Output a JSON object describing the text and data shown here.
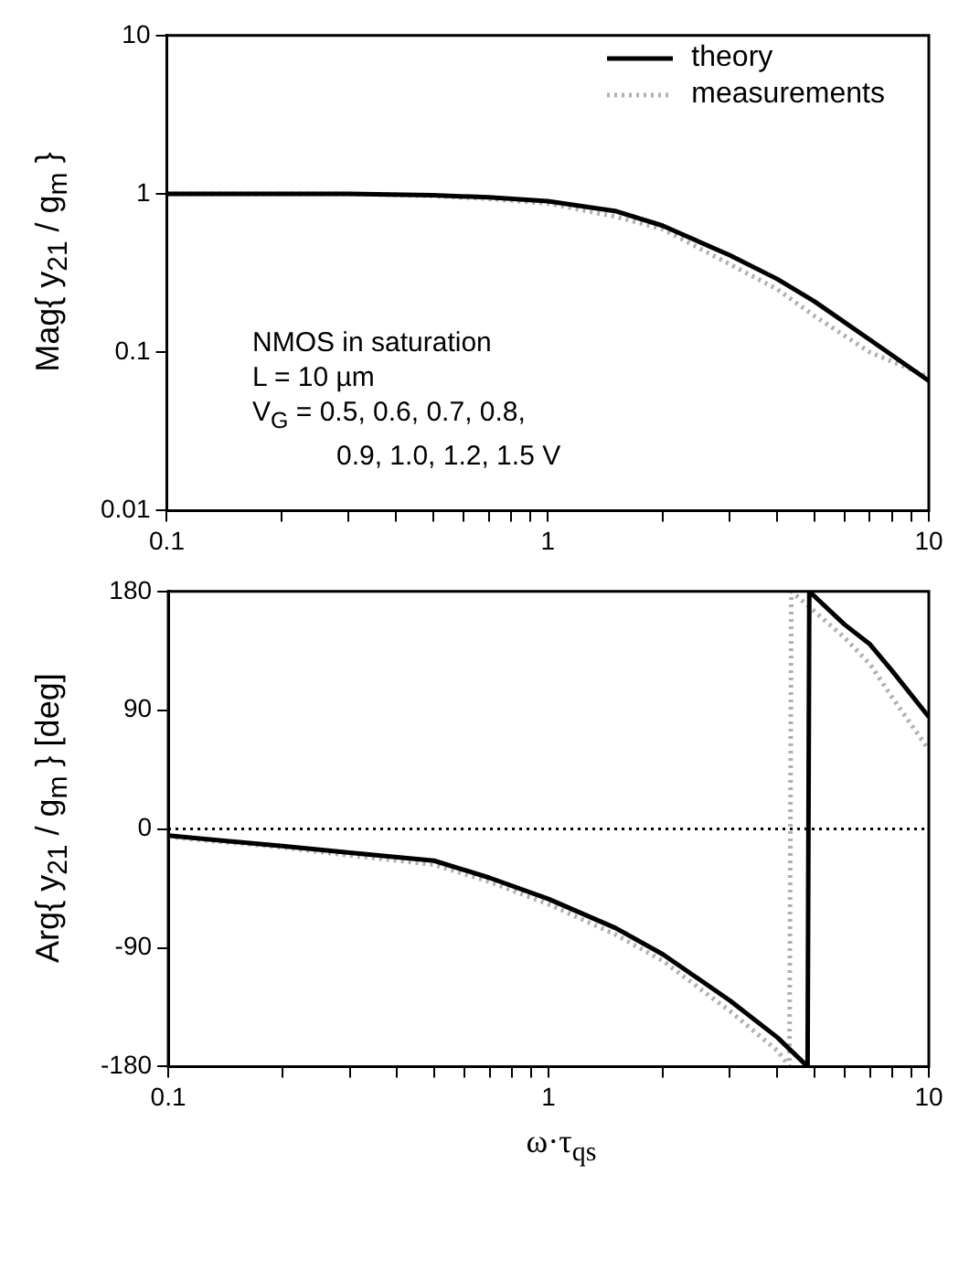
{
  "chart_data": [
    {
      "type": "line",
      "log": "xy",
      "xlim": [
        0.1,
        10
      ],
      "ylim": [
        0.01,
        10
      ],
      "xticks": [
        0.1,
        {
          "value": 0.2,
          "label": null
        },
        {
          "value": 0.3,
          "label": null
        },
        {
          "value": 0.4,
          "label": null
        },
        {
          "value": 0.5,
          "label": null
        },
        {
          "value": 0.6,
          "label": null
        },
        {
          "value": 0.7,
          "label": null
        },
        {
          "value": 0.8,
          "label": null
        },
        {
          "value": 0.9,
          "label": null
        },
        1,
        {
          "value": 2,
          "label": null
        },
        {
          "value": 3,
          "label": null
        },
        {
          "value": 4,
          "label": null
        },
        {
          "value": 5,
          "label": null
        },
        {
          "value": 6,
          "label": null
        },
        {
          "value": 7,
          "label": null
        },
        {
          "value": 8,
          "label": null
        },
        {
          "value": 9,
          "label": null
        },
        10
      ],
      "yticks": [
        0.01,
        0.1,
        1,
        10
      ],
      "ylabel": "Mag{ y$_{21}$ / g$_{m}$ }",
      "legend": "top right",
      "marker": "none",
      "annotations": [
        "NMOS in saturation",
        "L = 10 µm",
        "V$_{G}$ = 0.5, 0.6, 0.7, 0.8,",
        "0.9, 1.0, 1.2, 1.5 V"
      ],
      "series": [
        {
          "name": "theory",
          "color": "#000000",
          "line_style": "solid",
          "x": [
            0.1,
            0.2,
            0.3,
            0.5,
            0.7,
            1,
            1.5,
            2,
            3,
            4,
            5,
            7,
            10
          ],
          "values": [
            1,
            1,
            1,
            0.98,
            0.95,
            0.9,
            0.78,
            0.63,
            0.41,
            0.29,
            0.21,
            0.12,
            0.066
          ]
        },
        {
          "name": "measurements",
          "color": "#b0b0b0",
          "line_style": "dotted",
          "x": [
            0.1,
            0.3,
            0.5,
            0.7,
            1,
            1.5,
            2,
            3,
            4,
            5,
            7,
            10
          ],
          "values": [
            1,
            1,
            0.97,
            0.93,
            0.87,
            0.72,
            0.6,
            0.36,
            0.25,
            0.17,
            0.1,
            0.07
          ]
        }
      ]
    },
    {
      "type": "line",
      "log": "x",
      "xlim": [
        0.1,
        10
      ],
      "ylim": [
        -180,
        180
      ],
      "xticks": [
        0.1,
        {
          "value": 0.2,
          "label": null
        },
        {
          "value": 0.3,
          "label": null
        },
        {
          "value": 0.4,
          "label": null
        },
        {
          "value": 0.5,
          "label": null
        },
        {
          "value": 0.6,
          "label": null
        },
        {
          "value": 0.7,
          "label": null
        },
        {
          "value": 0.8,
          "label": null
        },
        {
          "value": 0.9,
          "label": null
        },
        1,
        {
          "value": 2,
          "label": null
        },
        {
          "value": 3,
          "label": null
        },
        {
          "value": 4,
          "label": null
        },
        {
          "value": 5,
          "label": null
        },
        {
          "value": 6,
          "label": null
        },
        {
          "value": 7,
          "label": null
        },
        {
          "value": 8,
          "label": null
        },
        {
          "value": 9,
          "label": null
        },
        10
      ],
      "yticks": [
        -180,
        -90,
        0,
        90,
        180
      ],
      "xlabel": "ω·τ$_{qs}$",
      "ylabel": "Arg{ y$_{21}$ / g$_{m}$ } [deg]",
      "marker": "none",
      "ref_lines": [
        {
          "axis": "y",
          "value": 0,
          "color": "#000000",
          "line_style": "dotted"
        }
      ],
      "series": [
        {
          "color": "#000000",
          "line_style": "solid",
          "x": [
            0.1,
            0.2,
            0.3,
            0.5,
            0.7,
            1,
            1.5,
            2,
            3,
            4,
            4.8,
            4.85,
            6,
            7,
            8,
            10
          ],
          "values": [
            -5,
            -13,
            -18,
            -24,
            -37,
            -53,
            -75,
            -95,
            -130,
            -158,
            -180,
            180,
            155,
            140,
            120,
            85
          ]
        },
        {
          "color": "#b0b0b0",
          "line_style": "dotted",
          "x": [
            0.1,
            0.2,
            0.3,
            0.5,
            0.7,
            1,
            1.5,
            2,
            3,
            4,
            4.3,
            4.35,
            5,
            6,
            7,
            8,
            10
          ],
          "values": [
            -6,
            -14,
            -20,
            -27,
            -40,
            -57,
            -80,
            -100,
            -138,
            -168,
            -180,
            180,
            165,
            145,
            125,
            100,
            60
          ]
        }
      ]
    }
  ]
}
